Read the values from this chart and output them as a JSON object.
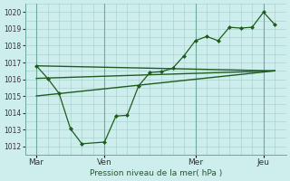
{
  "background_color": "#ceeeed",
  "grid_color": "#aad4d0",
  "line_color": "#1e5c1e",
  "ylim": [
    1011.5,
    1020.5
  ],
  "xlabel": "Pression niveau de la mer( hPa )",
  "yticks": [
    1012,
    1013,
    1014,
    1015,
    1016,
    1017,
    1018,
    1019,
    1020
  ],
  "xtick_labels": [
    "Mar",
    "Ven",
    "Mer",
    "Jeu"
  ],
  "xtick_positions": [
    0,
    3,
    7,
    10
  ],
  "vline_positions": [
    0,
    3,
    7,
    10
  ],
  "jagged": {
    "x": [
      0,
      0.5,
      1.0,
      1.5,
      2.0,
      3.0,
      3.5,
      4.0,
      4.5,
      5.0,
      5.5,
      6.0,
      6.5,
      7.0,
      7.5,
      8.0,
      8.5,
      9.0,
      9.5,
      10.0,
      10.5
    ],
    "y": [
      1016.8,
      1016.05,
      1015.15,
      1013.05,
      1012.15,
      1012.25,
      1013.8,
      1013.85,
      1015.6,
      1016.4,
      1016.45,
      1016.65,
      1017.4,
      1018.3,
      1018.55,
      1018.3,
      1019.1,
      1019.05,
      1019.1,
      1020.0,
      1019.25
    ]
  },
  "env_upper": {
    "x": [
      0,
      10.5
    ],
    "y": [
      1016.8,
      1016.5
    ]
  },
  "env_lower": {
    "x": [
      0,
      10.5
    ],
    "y": [
      1015.0,
      1016.5
    ]
  },
  "mid_trend": {
    "x": [
      0,
      10.5
    ],
    "y": [
      1016.05,
      1016.5
    ]
  },
  "xlim": [
    -0.5,
    11.0
  ]
}
